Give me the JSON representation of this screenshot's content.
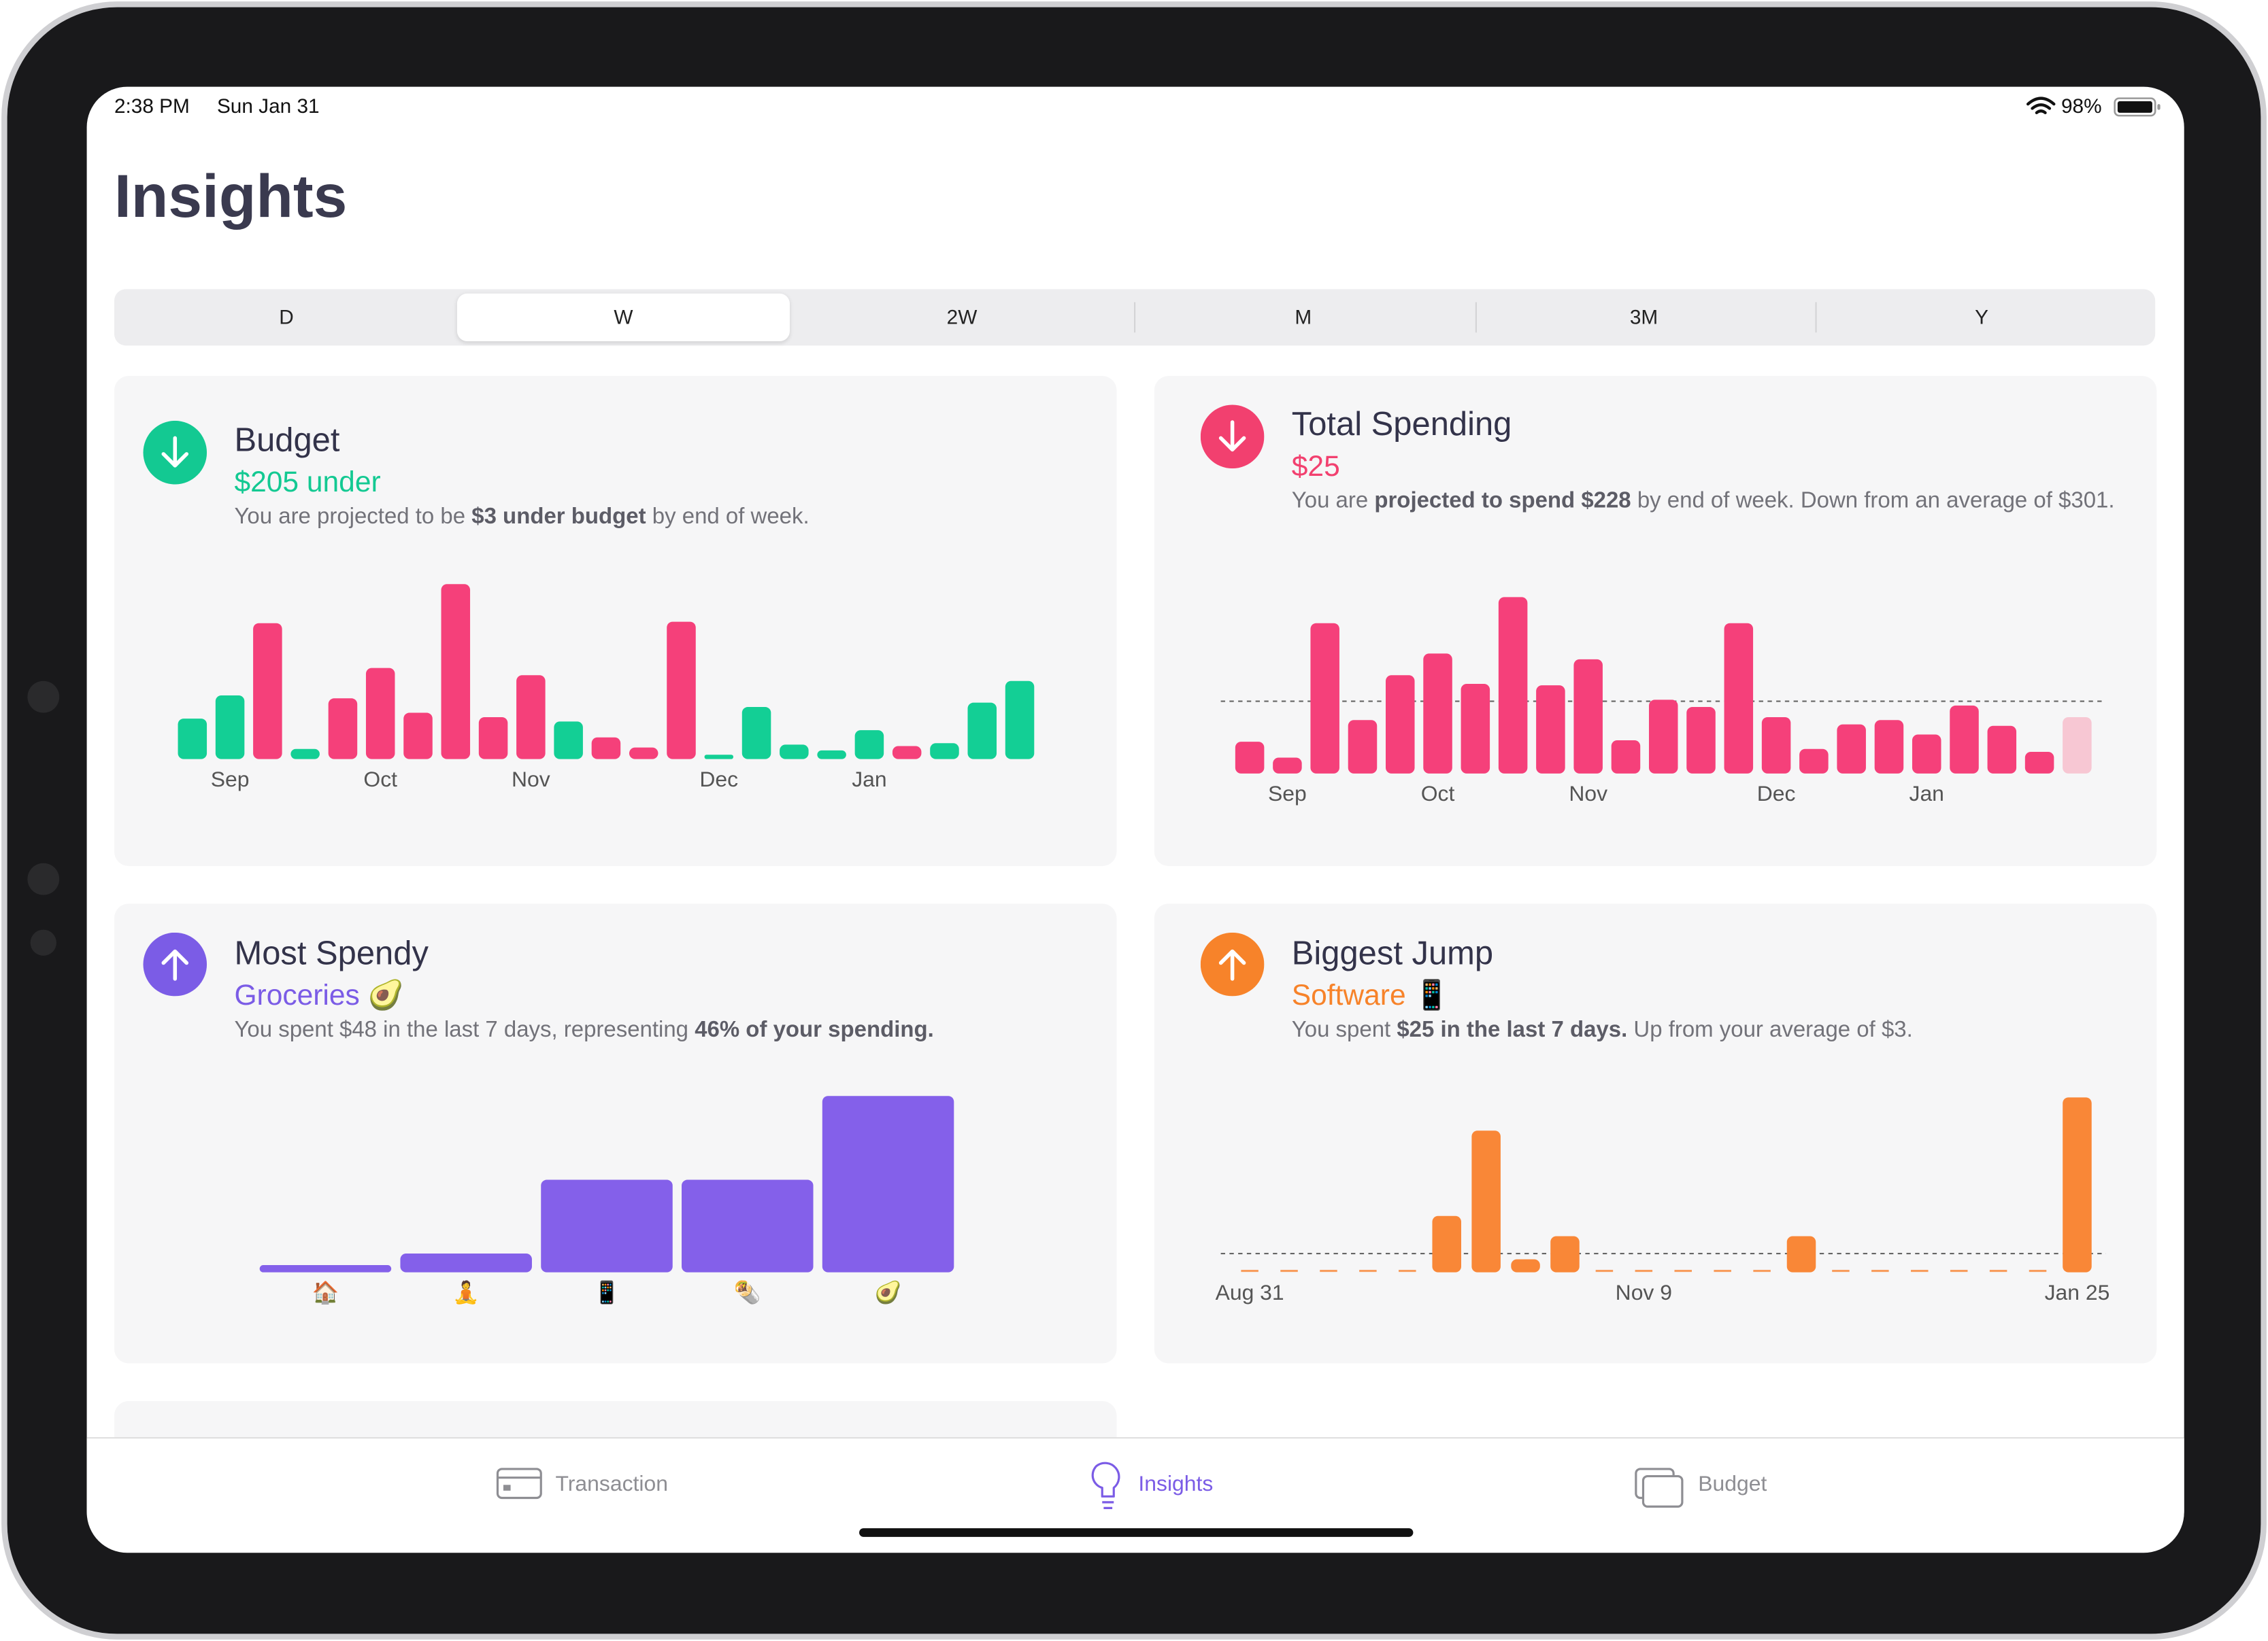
{
  "status": {
    "time": "2:38 PM",
    "date": "Sun Jan 31",
    "battery": "98%"
  },
  "title": "Insights",
  "segments": {
    "options": [
      "D",
      "W",
      "2W",
      "M",
      "3M",
      "Y"
    ],
    "selected": 1
  },
  "cards": [
    {
      "title": "Budget",
      "headline": "$205 under",
      "icon": "down",
      "color": "#13c992",
      "description": [
        {
          "text": "You are projected to be "
        },
        {
          "text": "$3 under budget",
          "bold": true
        },
        {
          "text": " by end of week."
        }
      ],
      "chart": {
        "type": "bar",
        "categories": [
          null,
          "Sep",
          null,
          null,
          null,
          "Oct",
          null,
          null,
          null,
          "Nov",
          null,
          null,
          null,
          null,
          "Dec",
          null,
          null,
          null,
          "Jan",
          null,
          null,
          null,
          null
        ],
        "values": [
          28,
          44,
          94,
          7,
          42,
          63,
          32,
          121,
          29,
          58,
          26,
          15,
          8,
          95,
          3,
          36,
          10,
          6,
          20,
          9,
          11,
          39,
          54
        ],
        "colors": [
          "#13cf95",
          "#13cf95",
          "#f5407a",
          "#13cf95",
          "#f5407a",
          "#f5407a",
          "#f5407a",
          "#f5407a",
          "#f5407a",
          "#f5407a",
          "#13cf95",
          "#f5407a",
          "#f5407a",
          "#f5407a",
          "#13cf95",
          "#13cf95",
          "#13cf95",
          "#13cf95",
          "#13cf95",
          "#f5407a",
          "#13cf95",
          "#13cf95",
          "#13cf95"
        ]
      }
    },
    {
      "title": "Total Spending",
      "headline": "$25",
      "icon": "down",
      "color": "#f2406f",
      "description": [
        {
          "text": "You are "
        },
        {
          "text": "projected to spend $228",
          "bold": true
        },
        {
          "text": " by end of week. Down from an average of $301."
        }
      ],
      "chart": {
        "type": "bar",
        "categories": [
          null,
          "Sep",
          null,
          null,
          null,
          "Oct",
          null,
          null,
          null,
          "Nov",
          null,
          null,
          null,
          null,
          "Dec",
          null,
          null,
          null,
          "Jan",
          null,
          null,
          null,
          null
        ],
        "values": [
          22,
          11,
          104,
          37,
          68,
          83,
          62,
          122,
          61,
          79,
          23,
          51,
          46,
          104,
          39,
          17,
          34,
          37,
          27,
          47,
          33,
          15,
          39
        ],
        "average": 50,
        "colors": [
          "#f5407a",
          "#f5407a",
          "#f5407a",
          "#f5407a",
          "#f5407a",
          "#f5407a",
          "#f5407a",
          "#f5407a",
          "#f5407a",
          "#f5407a",
          "#f5407a",
          "#f5407a",
          "#f5407a",
          "#f5407a",
          "#f5407a",
          "#f5407a",
          "#f5407a",
          "#f5407a",
          "#f5407a",
          "#f5407a",
          "#f5407a",
          "#f5407a",
          "#f7c7d3"
        ]
      }
    },
    {
      "title": "Most Spendy",
      "headline": "Groceries 🥑",
      "icon": "up",
      "color": "#7b5ce6",
      "description": [
        {
          "text": "You spent $48 in the last 7 days, representing "
        },
        {
          "text": "46% of your spending.",
          "bold": true
        }
      ],
      "chart": {
        "type": "bar",
        "categories": [
          "🏠",
          "🧘",
          "📱",
          "🌯",
          "🥑"
        ],
        "values": [
          5,
          13,
          64,
          64,
          122
        ],
        "color": "#8460ea"
      }
    },
    {
      "title": "Biggest Jump",
      "headline": "Software 📱",
      "icon": "up",
      "color": "#f7832a",
      "description": [
        {
          "text": "You spent "
        },
        {
          "text": "$25 in the last 7 days.",
          "bold": true
        },
        {
          "text": " Up from your average of $3."
        }
      ],
      "chart": {
        "type": "bar",
        "categories": [
          "Aug 31",
          null,
          null,
          null,
          null,
          null,
          null,
          null,
          null,
          null,
          "Nov 9",
          null,
          null,
          null,
          null,
          null,
          null,
          null,
          null,
          null,
          null,
          "Jan 25"
        ],
        "values": [
          0,
          0,
          0,
          0,
          0,
          39,
          98,
          9,
          25,
          0,
          0,
          0,
          0,
          0,
          25,
          0,
          0,
          0,
          0,
          0,
          0,
          121
        ],
        "average": 13,
        "color": "#f98737"
      }
    }
  ],
  "tabs": {
    "items": [
      "Transaction",
      "Insights",
      "Budget"
    ],
    "selected": 1
  }
}
